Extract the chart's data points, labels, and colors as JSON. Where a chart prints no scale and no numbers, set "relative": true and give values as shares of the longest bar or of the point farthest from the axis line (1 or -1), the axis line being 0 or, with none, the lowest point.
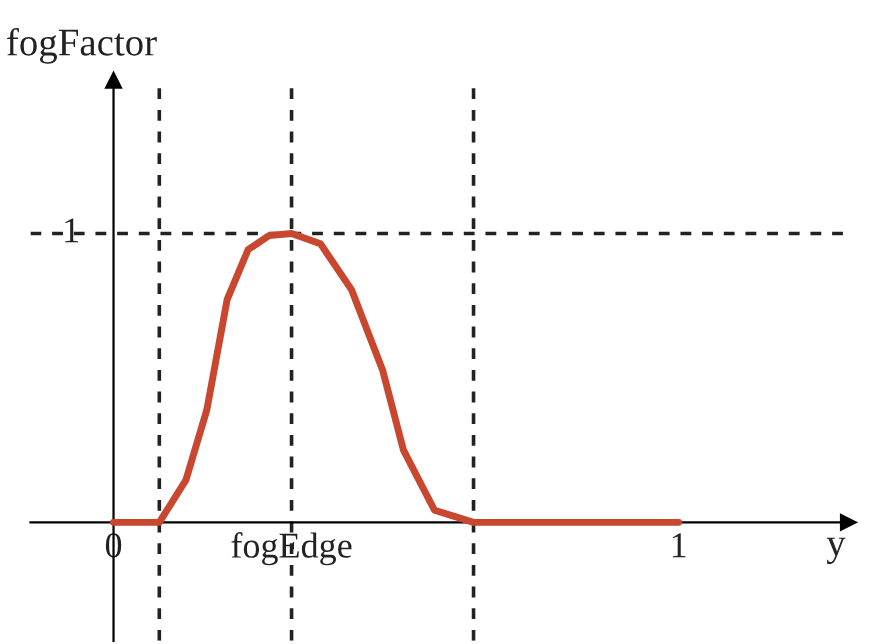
{
  "chart_data": {
    "type": "line",
    "xlabel": "y",
    "ylabel": "fogFactor",
    "x": [
      0,
      0.081,
      0.128,
      0.165,
      0.201,
      0.238,
      0.275,
      0.315,
      0.366,
      0.421,
      0.476,
      0.513,
      0.568,
      0.637,
      1
    ],
    "series": [
      {
        "color": "#c9462f",
        "values": [
          0,
          0,
          0.146,
          0.389,
          0.771,
          0.944,
          0.993,
          1,
          0.965,
          0.806,
          0.528,
          0.25,
          0.042,
          0,
          0
        ]
      }
    ],
    "relative": true,
    "annotations": [
      {
        "text": "1",
        "y": 1
      }
    ],
    "xlim": [
      -0.147,
      1.3
    ],
    "xticks": [
      {
        "value": 0,
        "label": "0"
      },
      {
        "value": 0.315,
        "label": "fogEdge"
      },
      1
    ],
    "ref_lines": [
      {
        "axis": "x",
        "value": 0.081,
        "line_style": "dashed",
        "color": "#222222"
      },
      {
        "axis": "x",
        "value": 0.315,
        "line_style": "dashed",
        "color": "#222222"
      },
      {
        "axis": "x",
        "value": 0.637,
        "line_style": "dashed",
        "color": "#222222"
      },
      {
        "axis": "y",
        "value": 1,
        "line_style": "dashed",
        "color": "#222222"
      }
    ],
    "grid": false,
    "legend": false,
    "marker": "none",
    "line_style": "solid"
  }
}
